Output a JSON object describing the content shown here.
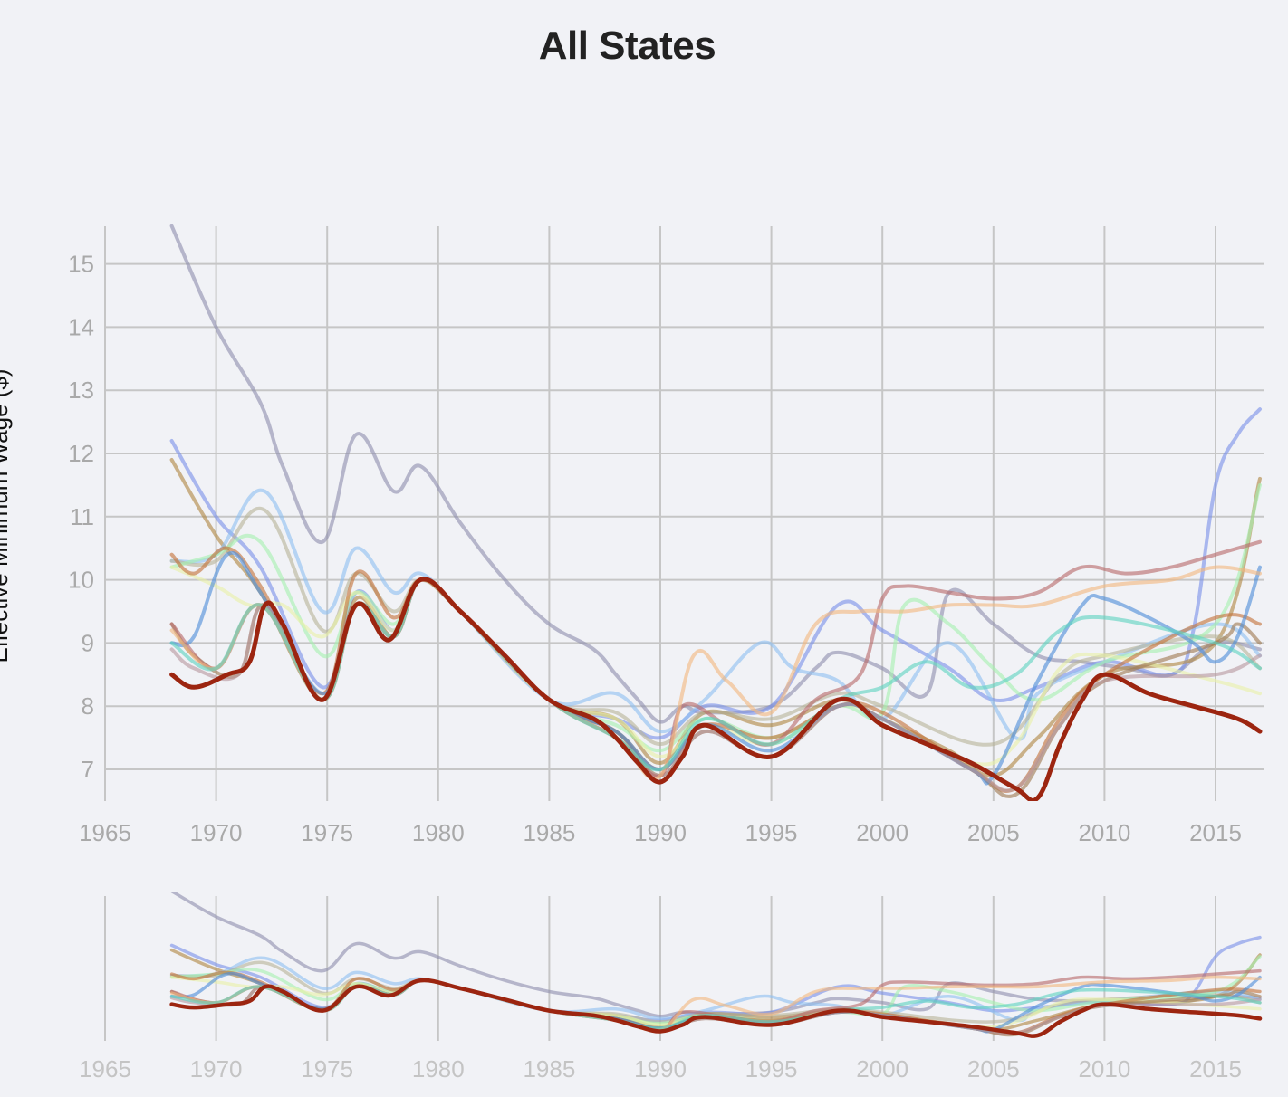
{
  "chart_data": {
    "type": "line",
    "title": "All States",
    "ylabel": "Effective Minimum Wage ($)",
    "xlim": [
      1965,
      2017
    ],
    "ylim": [
      6.5,
      15.6
    ],
    "x_ticks": [
      1965,
      1970,
      1975,
      1980,
      1985,
      1990,
      1995,
      2000,
      2005,
      2010,
      2015
    ],
    "y_ticks": [
      7,
      8,
      9,
      10,
      11,
      12,
      13,
      14,
      15
    ],
    "grid": true,
    "context_chart": {
      "type": "line",
      "x_ticks": [
        1965,
        1970,
        1975,
        1980,
        1985,
        1990,
        1995,
        2000,
        2005,
        2010,
        2015
      ]
    },
    "series": [
      {
        "color": "#9090ae",
        "x": [
          1968,
          1970,
          1972,
          1973,
          1974.8,
          1976.3,
          1978,
          1979.2,
          1981,
          1983,
          1985,
          1987,
          1988,
          1989,
          1990,
          1991,
          1992,
          1995,
          1997,
          1998,
          2000,
          2002,
          2003,
          2005,
          2007,
          2009,
          2011,
          2013,
          2015,
          2017
        ],
        "values": [
          15.6,
          14.0,
          12.8,
          11.8,
          10.6,
          12.3,
          11.4,
          11.8,
          10.9,
          10.0,
          9.3,
          8.9,
          8.5,
          8.1,
          7.75,
          8.0,
          7.9,
          8.0,
          8.6,
          8.85,
          8.6,
          8.2,
          9.8,
          9.3,
          8.8,
          8.7,
          8.6,
          8.5,
          9.0,
          8.9
        ]
      },
      {
        "color": "#7a92e8",
        "x": [
          1968,
          1970,
          1972,
          1974.8,
          1976.3,
          1978,
          1979.2,
          1981,
          1985,
          1988,
          1990,
          1992,
          1995,
          1998,
          2000,
          2003,
          2005,
          2007,
          2010,
          2013,
          2014,
          2015,
          2016,
          2017
        ],
        "values": [
          12.2,
          11.0,
          10.2,
          8.3,
          9.8,
          9.2,
          10.0,
          9.5,
          8.1,
          7.8,
          7.5,
          8.0,
          8.0,
          9.6,
          9.2,
          8.6,
          8.1,
          8.3,
          8.7,
          8.5,
          9.2,
          11.5,
          12.3,
          12.7
        ]
      },
      {
        "color": "#b08744",
        "x": [
          1968,
          1970,
          1972,
          1974.8,
          1976.3,
          1978,
          1979.2,
          1981,
          1985,
          1988,
          1990,
          1992,
          1995,
          1998,
          2000,
          2003,
          2005,
          2007,
          2010,
          2015,
          2017
        ],
        "values": [
          11.9,
          10.7,
          9.8,
          8.1,
          9.7,
          9.1,
          10.0,
          9.5,
          8.1,
          7.8,
          7.1,
          7.9,
          7.7,
          8.1,
          7.8,
          7.3,
          6.9,
          7.5,
          8.5,
          9.0,
          11.6
        ]
      },
      {
        "color": "#8fc0f0",
        "x": [
          1968,
          1970,
          1972.2,
          1974.8,
          1976.3,
          1978,
          1979.2,
          1981,
          1985,
          1988,
          1990,
          1992,
          1994.5,
          1996,
          1998,
          2000,
          2003,
          2006,
          2007,
          2010,
          2015,
          2017
        ],
        "values": [
          10.3,
          10.4,
          11.4,
          9.5,
          10.5,
          9.8,
          10.1,
          9.5,
          8.1,
          8.2,
          7.6,
          8.1,
          9.0,
          8.6,
          8.4,
          7.8,
          9.0,
          7.5,
          8.2,
          8.7,
          9.3,
          8.8
        ]
      },
      {
        "color": "#b8b49a",
        "x": [
          1968,
          1970,
          1972.2,
          1974.8,
          1976.3,
          1978,
          1979.2,
          1981,
          1985,
          1988,
          1990,
          1992,
          1995,
          1998,
          2000,
          2005,
          2008,
          2010,
          2015,
          2017
        ],
        "values": [
          10.3,
          10.3,
          11.1,
          9.2,
          10.1,
          9.5,
          10.0,
          9.5,
          8.1,
          7.9,
          7.4,
          7.9,
          7.8,
          8.2,
          8.0,
          7.4,
          8.5,
          8.8,
          9.1,
          8.6
        ]
      },
      {
        "color": "#a6f0b0",
        "x": [
          1968,
          1970,
          1972,
          1974.8,
          1976.3,
          1978,
          1979.2,
          1981,
          1985,
          1988,
          1990,
          1992,
          1995,
          1998,
          2000,
          2001,
          2003,
          2005,
          2007,
          2010,
          2015,
          2017
        ],
        "values": [
          10.2,
          10.4,
          10.6,
          8.8,
          9.8,
          9.3,
          10.0,
          9.5,
          8.1,
          7.7,
          7.3,
          7.8,
          7.5,
          8.0,
          7.9,
          9.6,
          9.3,
          8.6,
          8.1,
          8.7,
          9.3,
          11.5
        ]
      },
      {
        "color": "#e8f0a8",
        "x": [
          1968,
          1970,
          1971.5,
          1973,
          1974.8,
          1976.3,
          1978,
          1979.2,
          1981,
          1985,
          1988,
          1990,
          1992,
          1995,
          1998,
          2000,
          2004,
          2006,
          2008,
          2010,
          2015,
          2017
        ],
        "values": [
          10.2,
          9.9,
          9.6,
          9.6,
          9.1,
          9.8,
          9.2,
          10.0,
          9.5,
          8.1,
          7.8,
          7.2,
          7.7,
          7.4,
          8.0,
          7.8,
          7.1,
          7.4,
          8.6,
          8.8,
          8.4,
          8.2
        ]
      },
      {
        "color": "#c4733a",
        "x": [
          1968,
          1969,
          1970.5,
          1972,
          1974.8,
          1976.3,
          1978,
          1979.2,
          1981,
          1985,
          1988,
          1990,
          1992,
          1995,
          1998,
          2000,
          2004,
          2006,
          2008,
          2010,
          2015,
          2017
        ],
        "values": [
          10.4,
          10.1,
          10.5,
          9.9,
          8.2,
          10.1,
          9.4,
          10.0,
          9.5,
          8.1,
          7.6,
          7.0,
          7.7,
          7.5,
          8.0,
          7.9,
          7.0,
          6.7,
          7.8,
          8.5,
          9.4,
          9.3
        ]
      },
      {
        "color": "#a07a52",
        "x": [
          1968,
          1969,
          1971,
          1972.2,
          1974.8,
          1976.3,
          1978,
          1979.2,
          1981,
          1985,
          1988,
          1990,
          1992,
          1995,
          1998,
          2000,
          2004,
          2006,
          2008,
          2010,
          2015,
          2016,
          2017
        ],
        "values": [
          9.3,
          8.8,
          8.5,
          9.6,
          8.1,
          9.6,
          9.1,
          10.0,
          9.5,
          8.1,
          7.6,
          6.9,
          7.6,
          7.2,
          8.0,
          7.8,
          7.0,
          6.6,
          7.7,
          8.4,
          9.0,
          9.3,
          9.0
        ]
      },
      {
        "color": "#4f8ed8",
        "x": [
          1968,
          1969,
          1970.5,
          1972,
          1974.8,
          1976.3,
          1978,
          1979.2,
          1981,
          1985,
          1988,
          1990,
          1992,
          1995,
          1998,
          2000,
          2004,
          2005,
          2007,
          2009,
          2010,
          2012,
          2014,
          2015,
          2016,
          2017
        ],
        "values": [
          9.0,
          9.1,
          10.4,
          9.8,
          8.2,
          9.6,
          9.1,
          10.0,
          9.5,
          8.1,
          7.6,
          7.0,
          7.7,
          7.3,
          8.0,
          7.8,
          7.0,
          6.9,
          8.4,
          9.6,
          9.7,
          9.4,
          9.0,
          8.7,
          9.1,
          10.2
        ]
      },
      {
        "color": "#b89aa0",
        "x": [
          1968,
          1969,
          1971,
          1972.2,
          1974.8,
          1976.3,
          1978,
          1979.2,
          1981,
          1985,
          1988,
          1990,
          1992,
          1995,
          1998,
          2000,
          2004,
          2006,
          2008,
          2010,
          2015,
          2017
        ],
        "values": [
          8.9,
          8.6,
          8.5,
          9.6,
          8.1,
          9.6,
          9.1,
          10.0,
          9.5,
          8.1,
          7.5,
          6.9,
          7.6,
          7.2,
          8.0,
          7.8,
          7.0,
          6.7,
          7.7,
          8.4,
          8.5,
          8.8
        ]
      },
      {
        "color": "#b86a6a",
        "x": [
          1968,
          1970,
          1972,
          1974.8,
          1976.3,
          1978,
          1979.2,
          1981,
          1985,
          1988,
          1990,
          1991,
          1993,
          1995,
          1997,
          1999,
          2000,
          2001,
          2003,
          2005,
          2007,
          2009,
          2011,
          2013,
          2015,
          2017
        ],
        "values": [
          9.3,
          8.6,
          9.6,
          8.1,
          9.6,
          9.1,
          10.0,
          9.5,
          8.1,
          7.5,
          6.9,
          8.0,
          7.7,
          7.4,
          8.1,
          8.5,
          9.7,
          9.9,
          9.8,
          9.7,
          9.8,
          10.2,
          10.1,
          10.2,
          10.4,
          10.6
        ]
      },
      {
        "color": "#f2b880",
        "x": [
          1968,
          1970,
          1972,
          1974.8,
          1976.3,
          1978,
          1979.2,
          1981,
          1985,
          1988,
          1990,
          1991.5,
          1993,
          1995,
          1997,
          1999,
          2001,
          2003,
          2005,
          2007,
          2010,
          2013,
          2015,
          2017
        ],
        "values": [
          9.2,
          8.6,
          9.6,
          8.1,
          9.6,
          9.1,
          10.0,
          9.5,
          8.1,
          7.5,
          6.9,
          8.8,
          8.4,
          7.9,
          9.3,
          9.5,
          9.5,
          9.6,
          9.6,
          9.6,
          9.9,
          10.0,
          10.2,
          10.1
        ]
      },
      {
        "color": "#5fd4c0",
        "x": [
          1968,
          1970,
          1972,
          1974.8,
          1976.3,
          1978,
          1979.2,
          1981,
          1985,
          1988,
          1990,
          1992,
          1995,
          1998,
          2000,
          2002,
          2004,
          2006,
          2008,
          2010,
          2015,
          2017
        ],
        "values": [
          9.0,
          8.6,
          9.6,
          8.1,
          9.6,
          9.1,
          10.0,
          9.5,
          8.1,
          7.5,
          7.0,
          7.8,
          7.4,
          8.1,
          8.3,
          8.7,
          8.3,
          8.5,
          9.2,
          9.4,
          9.0,
          8.6
        ]
      },
      {
        "color": "#9c2510",
        "width": 5,
        "x": [
          1968,
          1969,
          1970.5,
          1971.5,
          1972.2,
          1973,
          1974.8,
          1976.3,
          1977.8,
          1979.2,
          1981,
          1983,
          1985,
          1987,
          1988,
          1989,
          1990,
          1991,
          1992,
          1995,
          1998,
          2000,
          2002,
          2004,
          2006,
          2007,
          2008,
          2009,
          2010,
          2012,
          2014,
          2016,
          2017
        ],
        "values": [
          8.5,
          8.3,
          8.5,
          8.7,
          9.6,
          9.3,
          8.1,
          9.6,
          9.05,
          10.0,
          9.5,
          8.8,
          8.1,
          7.8,
          7.5,
          7.1,
          6.8,
          7.2,
          7.7,
          7.2,
          8.1,
          7.7,
          7.4,
          7.1,
          6.7,
          6.55,
          7.4,
          8.1,
          8.5,
          8.2,
          8.0,
          7.8,
          7.6
        ]
      }
    ]
  }
}
